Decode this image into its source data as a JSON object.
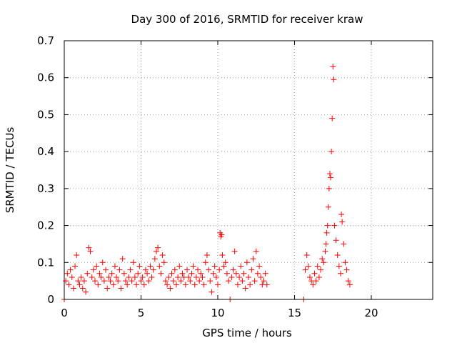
{
  "chart_data": {
    "type": "scatter",
    "title": "Day 300 of 2016, SRMTID for receiver kraw",
    "xlabel": "GPS time / hours",
    "ylabel": "SRMTID / TECUs",
    "xlim": [
      0,
      24
    ],
    "ylim": [
      0,
      0.7
    ],
    "xticks": [
      0,
      5,
      10,
      15,
      20
    ],
    "yticks": [
      0,
      0.1,
      0.2,
      0.3,
      0.4,
      0.5,
      0.6,
      0.7
    ],
    "xtick_labels": [
      "0",
      "5",
      "10",
      "15",
      "20"
    ],
    "ytick_labels": [
      "0",
      "0.1",
      "0.2",
      "0.3",
      "0.4",
      "0.5",
      "0.6",
      "0.7"
    ],
    "grid": true,
    "marker": "+",
    "color": "#ff0000",
    "series": [
      {
        "name": "SRMTID",
        "points": [
          [
            0.0,
            0.0
          ],
          [
            0.1,
            0.05
          ],
          [
            0.2,
            0.07
          ],
          [
            0.3,
            0.04
          ],
          [
            0.4,
            0.08
          ],
          [
            0.5,
            0.06
          ],
          [
            0.6,
            0.03
          ],
          [
            0.7,
            0.09
          ],
          [
            0.8,
            0.12
          ],
          [
            0.9,
            0.05
          ],
          [
            1.0,
            0.04
          ],
          [
            1.1,
            0.06
          ],
          [
            1.2,
            0.03
          ],
          [
            1.3,
            0.05
          ],
          [
            1.4,
            0.02
          ],
          [
            1.5,
            0.07
          ],
          [
            1.6,
            0.14
          ],
          [
            1.7,
            0.13
          ],
          [
            1.8,
            0.06
          ],
          [
            1.9,
            0.08
          ],
          [
            2.0,
            0.05
          ],
          [
            2.1,
            0.09
          ],
          [
            2.2,
            0.04
          ],
          [
            2.3,
            0.07
          ],
          [
            2.4,
            0.06
          ],
          [
            2.5,
            0.1
          ],
          [
            2.6,
            0.05
          ],
          [
            2.7,
            0.08
          ],
          [
            2.8,
            0.03
          ],
          [
            2.9,
            0.06
          ],
          [
            3.0,
            0.05
          ],
          [
            3.1,
            0.07
          ],
          [
            3.2,
            0.04
          ],
          [
            3.3,
            0.09
          ],
          [
            3.4,
            0.06
          ],
          [
            3.5,
            0.05
          ],
          [
            3.6,
            0.08
          ],
          [
            3.7,
            0.03
          ],
          [
            3.8,
            0.11
          ],
          [
            3.9,
            0.07
          ],
          [
            4.0,
            0.05
          ],
          [
            4.1,
            0.04
          ],
          [
            4.2,
            0.06
          ],
          [
            4.3,
            0.08
          ],
          [
            4.4,
            0.05
          ],
          [
            4.5,
            0.1
          ],
          [
            4.6,
            0.06
          ],
          [
            4.7,
            0.04
          ],
          [
            4.8,
            0.07
          ],
          [
            4.9,
            0.09
          ],
          [
            5.0,
            0.05
          ],
          [
            5.1,
            0.06
          ],
          [
            5.2,
            0.04
          ],
          [
            5.3,
            0.08
          ],
          [
            5.4,
            0.07
          ],
          [
            5.5,
            0.05
          ],
          [
            5.6,
            0.09
          ],
          [
            5.7,
            0.06
          ],
          [
            5.8,
            0.08
          ],
          [
            5.9,
            0.11
          ],
          [
            6.0,
            0.13
          ],
          [
            6.1,
            0.14
          ],
          [
            6.2,
            0.09
          ],
          [
            6.3,
            0.07
          ],
          [
            6.4,
            0.12
          ],
          [
            6.5,
            0.1
          ],
          [
            6.6,
            0.05
          ],
          [
            6.7,
            0.04
          ],
          [
            6.8,
            0.06
          ],
          [
            6.9,
            0.03
          ],
          [
            7.0,
            0.07
          ],
          [
            7.1,
            0.05
          ],
          [
            7.2,
            0.08
          ],
          [
            7.3,
            0.04
          ],
          [
            7.4,
            0.06
          ],
          [
            7.5,
            0.09
          ],
          [
            7.6,
            0.05
          ],
          [
            7.7,
            0.07
          ],
          [
            7.8,
            0.06
          ],
          [
            7.9,
            0.04
          ],
          [
            8.0,
            0.08
          ],
          [
            8.1,
            0.06
          ],
          [
            8.2,
            0.05
          ],
          [
            8.3,
            0.07
          ],
          [
            8.4,
            0.09
          ],
          [
            8.5,
            0.04
          ],
          [
            8.6,
            0.06
          ],
          [
            8.7,
            0.08
          ],
          [
            8.8,
            0.05
          ],
          [
            8.9,
            0.07
          ],
          [
            9.0,
            0.06
          ],
          [
            9.1,
            0.04
          ],
          [
            9.2,
            0.1
          ],
          [
            9.3,
            0.12
          ],
          [
            9.4,
            0.08
          ],
          [
            9.5,
            0.05
          ],
          [
            9.6,
            0.02
          ],
          [
            9.7,
            0.07
          ],
          [
            9.8,
            0.09
          ],
          [
            9.9,
            0.06
          ],
          [
            10.0,
            0.04
          ],
          [
            10.1,
            0.08
          ],
          [
            10.15,
            0.18
          ],
          [
            10.2,
            0.17
          ],
          [
            10.25,
            0.175
          ],
          [
            10.3,
            0.12
          ],
          [
            10.4,
            0.09
          ],
          [
            10.5,
            0.1
          ],
          [
            10.6,
            0.07
          ],
          [
            10.7,
            0.05
          ],
          [
            10.8,
            0.0
          ],
          [
            10.9,
            0.06
          ],
          [
            11.0,
            0.08
          ],
          [
            11.1,
            0.13
          ],
          [
            11.2,
            0.07
          ],
          [
            11.3,
            0.04
          ],
          [
            11.4,
            0.06
          ],
          [
            11.5,
            0.09
          ],
          [
            11.6,
            0.05
          ],
          [
            11.7,
            0.07
          ],
          [
            11.8,
            0.03
          ],
          [
            11.9,
            0.1
          ],
          [
            12.0,
            0.06
          ],
          [
            12.1,
            0.04
          ],
          [
            12.2,
            0.08
          ],
          [
            12.3,
            0.11
          ],
          [
            12.4,
            0.05
          ],
          [
            12.5,
            0.13
          ],
          [
            12.6,
            0.07
          ],
          [
            12.7,
            0.09
          ],
          [
            12.8,
            0.06
          ],
          [
            12.9,
            0.04
          ],
          [
            13.0,
            0.05
          ],
          [
            13.1,
            0.07
          ],
          [
            13.2,
            0.04
          ],
          [
            15.6,
            0.0
          ],
          [
            15.7,
            0.08
          ],
          [
            15.8,
            0.12
          ],
          [
            15.9,
            0.09
          ],
          [
            16.0,
            0.06
          ],
          [
            16.1,
            0.05
          ],
          [
            16.2,
            0.04
          ],
          [
            16.3,
            0.07
          ],
          [
            16.4,
            0.05
          ],
          [
            16.5,
            0.09
          ],
          [
            16.6,
            0.06
          ],
          [
            16.7,
            0.08
          ],
          [
            16.8,
            0.11
          ],
          [
            16.9,
            0.1
          ],
          [
            17.0,
            0.13
          ],
          [
            17.05,
            0.15
          ],
          [
            17.1,
            0.18
          ],
          [
            17.15,
            0.2
          ],
          [
            17.2,
            0.25
          ],
          [
            17.25,
            0.3
          ],
          [
            17.3,
            0.34
          ],
          [
            17.35,
            0.33
          ],
          [
            17.4,
            0.4
          ],
          [
            17.45,
            0.49
          ],
          [
            17.5,
            0.63
          ],
          [
            17.55,
            0.595
          ],
          [
            17.6,
            0.2
          ],
          [
            17.7,
            0.16
          ],
          [
            17.8,
            0.12
          ],
          [
            17.9,
            0.09
          ],
          [
            18.0,
            0.07
          ],
          [
            18.05,
            0.23
          ],
          [
            18.1,
            0.21
          ],
          [
            18.2,
            0.15
          ],
          [
            18.3,
            0.1
          ],
          [
            18.4,
            0.08
          ],
          [
            18.5,
            0.05
          ],
          [
            18.6,
            0.04
          ]
        ]
      }
    ]
  }
}
